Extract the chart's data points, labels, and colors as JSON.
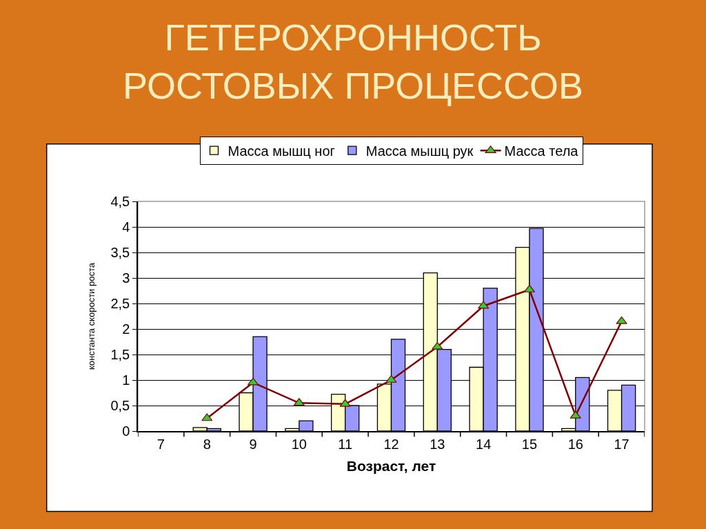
{
  "chart_data": {
    "type": "bar",
    "title": "ГЕТЕРОХРОННОСТЬ\nРОСТОВЫХ ПРОЦЕССОВ",
    "xlabel": "Возраст, лет",
    "ylabel": "константа скорости роста",
    "categories": [
      "7",
      "8",
      "9",
      "10",
      "11",
      "12",
      "13",
      "14",
      "15",
      "16",
      "17"
    ],
    "series": [
      {
        "name": "Масса мышц ног",
        "color": "#ffffcc",
        "values": [
          null,
          0.07,
          0.75,
          0.05,
          0.72,
          0.92,
          3.1,
          1.25,
          3.6,
          0.05,
          0.8
        ]
      },
      {
        "name": "Масса мышц рук",
        "color": "#9999ff",
        "values": [
          null,
          0.05,
          1.85,
          0.2,
          0.5,
          1.8,
          1.6,
          2.8,
          3.97,
          1.05,
          0.9
        ]
      },
      {
        "name": "Масса тела",
        "type": "line",
        "color": "#800000",
        "marker": "triangle",
        "values": [
          null,
          0.25,
          0.95,
          0.55,
          0.53,
          1.0,
          1.65,
          2.45,
          2.77,
          0.3,
          2.15
        ]
      }
    ],
    "ylim": [
      0,
      4.5
    ],
    "yticks": [
      0,
      {
        "value": 0.5,
        "label": "0,5"
      },
      1,
      {
        "value": 1.5,
        "label": "1,5"
      },
      2,
      {
        "value": 2.5,
        "label": "2,5"
      },
      3,
      {
        "value": 3.5,
        "label": "3,5"
      },
      4,
      {
        "value": 4.5,
        "label": "4,5"
      }
    ],
    "grid": "y",
    "legend": "top"
  }
}
